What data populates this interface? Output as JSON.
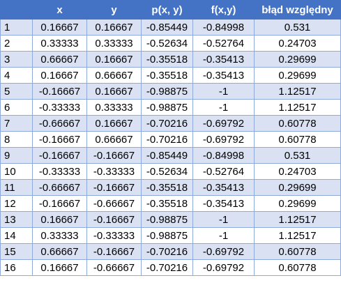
{
  "table": {
    "headers": [
      "",
      "x",
      "y",
      "p(x, y)",
      "f(x,y)",
      "błąd względny"
    ],
    "rows": [
      [
        "1",
        "0.16667",
        "0.16667",
        "-0.85449",
        "-0.84998",
        "0.531"
      ],
      [
        "2",
        "0.33333",
        "0.33333",
        "-0.52634",
        "-0.52764",
        "0.24703"
      ],
      [
        "3",
        "0.66667",
        "0.16667",
        "-0.35518",
        "-0.35413",
        "0.29699"
      ],
      [
        "4",
        "0.16667",
        "0.66667",
        "-0.35518",
        "-0.35413",
        "0.29699"
      ],
      [
        "5",
        "-0.16667",
        "0.16667",
        "-0.98875",
        "-1",
        "1.12517"
      ],
      [
        "6",
        "-0.33333",
        "0.33333",
        "-0.98875",
        "-1",
        "1.12517"
      ],
      [
        "7",
        "-0.66667",
        "0.16667",
        "-0.70216",
        "-0.69792",
        "0.60778"
      ],
      [
        "8",
        "-0.16667",
        "0.66667",
        "-0.70216",
        "-0.69792",
        "0.60778"
      ],
      [
        "9",
        "-0.16667",
        "-0.16667",
        "-0.85449",
        "-0.84998",
        "0.531"
      ],
      [
        "10",
        "-0.33333",
        "-0.33333",
        "-0.52634",
        "-0.52764",
        "0.24703"
      ],
      [
        "11",
        "-0.66667",
        "-0.16667",
        "-0.35518",
        "-0.35413",
        "0.29699"
      ],
      [
        "12",
        "-0.16667",
        "-0.66667",
        "-0.35518",
        "-0.35413",
        "0.29699"
      ],
      [
        "13",
        "0.16667",
        "-0.16667",
        "-0.98875",
        "-1",
        "1.12517"
      ],
      [
        "14",
        "0.33333",
        "-0.33333",
        "-0.98875",
        "-1",
        "1.12517"
      ],
      [
        "15",
        "0.66667",
        "-0.16667",
        "-0.70216",
        "-0.69792",
        "0.60778"
      ],
      [
        "16",
        "0.16667",
        "-0.66667",
        "-0.70216",
        "-0.69792",
        "0.60778"
      ]
    ]
  },
  "colors": {
    "header_bg": "#4472c4",
    "header_text": "#ffffff",
    "band_bg": "#d9e1f2",
    "plain_bg": "#ffffff",
    "border": "#8eaadb"
  }
}
